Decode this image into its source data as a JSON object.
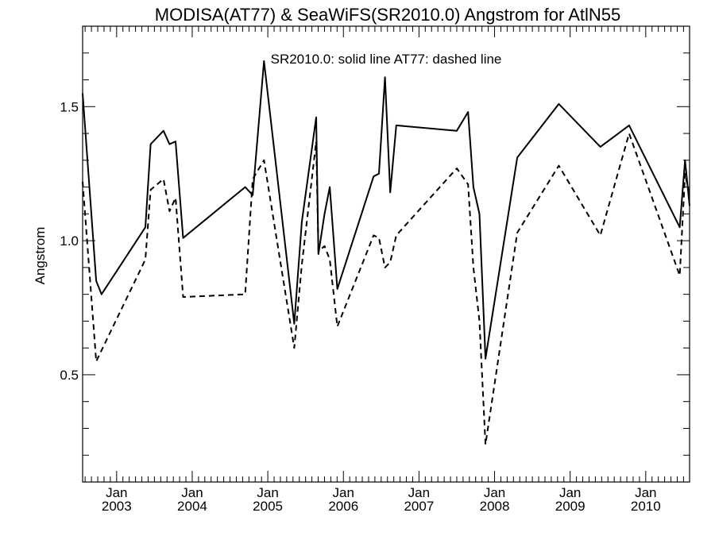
{
  "chart_data": {
    "type": "line",
    "title": "MODISA(AT77) & SeaWiFS(SR2010.0)  Angstrom for AtlN55",
    "legend_note": "SR2010.0: solid line   AT77: dashed line",
    "legend_placement": "top-center",
    "ylabel": "Angstrom",
    "xlabel": "",
    "xlim": [
      2002.55,
      2010.58
    ],
    "ylim": [
      0.1,
      1.8
    ],
    "grid": false,
    "y_major_ticks": [
      0.5,
      1.0,
      1.5
    ],
    "y_tick_labels": [
      "0.5",
      "1.0",
      "1.5"
    ],
    "x_ticks": [
      {
        "x": 2003.0,
        "month": "Jan",
        "year": "2003"
      },
      {
        "x": 2004.0,
        "month": "Jan",
        "year": "2004"
      },
      {
        "x": 2005.0,
        "month": "Jan",
        "year": "2005"
      },
      {
        "x": 2006.0,
        "month": "Jan",
        "year": "2006"
      },
      {
        "x": 2007.0,
        "month": "Jan",
        "year": "2007"
      },
      {
        "x": 2008.0,
        "month": "Jan",
        "year": "2008"
      },
      {
        "x": 2009.0,
        "month": "Jan",
        "year": "2009"
      },
      {
        "x": 2010.0,
        "month": "Jan",
        "year": "2010"
      }
    ],
    "series": [
      {
        "name": "SR2010.0",
        "style": "solid",
        "color": "#000000",
        "x": [
          2002.55,
          2002.73,
          2002.8,
          2003.38,
          2003.45,
          2003.62,
          2003.7,
          2003.78,
          2003.88,
          2004.7,
          2004.8,
          2004.95,
          2005.35,
          2005.45,
          2005.64,
          2005.67,
          2005.75,
          2005.82,
          2005.92,
          2006.4,
          2006.47,
          2006.55,
          2006.62,
          2006.7,
          2007.5,
          2007.65,
          2007.72,
          2007.8,
          2007.88,
          2008.3,
          2008.85,
          2009.4,
          2009.78,
          2010.45,
          2010.52,
          2010.58
        ],
        "values": [
          1.55,
          0.85,
          0.8,
          1.05,
          1.36,
          1.41,
          1.36,
          1.37,
          1.01,
          1.2,
          1.17,
          1.67,
          0.69,
          1.07,
          1.46,
          0.95,
          1.1,
          1.2,
          0.82,
          1.24,
          1.25,
          1.61,
          1.18,
          1.43,
          1.41,
          1.48,
          1.2,
          1.1,
          0.56,
          1.31,
          1.51,
          1.35,
          1.43,
          1.05,
          1.3,
          1.13
        ]
      },
      {
        "name": "AT77",
        "style": "dashed",
        "color": "#000000",
        "x": [
          2002.55,
          2002.73,
          2003.38,
          2003.45,
          2003.62,
          2003.7,
          2003.78,
          2003.88,
          2004.7,
          2004.8,
          2004.95,
          2005.35,
          2005.45,
          2005.64,
          2005.67,
          2005.75,
          2005.82,
          2005.92,
          2006.4,
          2006.47,
          2006.55,
          2006.62,
          2006.7,
          2007.5,
          2007.65,
          2007.72,
          2007.8,
          2007.88,
          2008.3,
          2008.85,
          2009.4,
          2009.78,
          2010.45,
          2010.52,
          2010.58
        ],
        "values": [
          1.22,
          0.55,
          0.93,
          1.19,
          1.23,
          1.11,
          1.16,
          0.79,
          0.8,
          1.23,
          1.3,
          0.6,
          0.91,
          1.37,
          0.96,
          0.98,
          0.93,
          0.68,
          1.02,
          1.01,
          0.9,
          0.92,
          1.02,
          1.27,
          1.21,
          0.9,
          0.7,
          0.24,
          1.03,
          1.28,
          1.02,
          1.4,
          0.87,
          1.25,
          1.17
        ]
      }
    ]
  }
}
